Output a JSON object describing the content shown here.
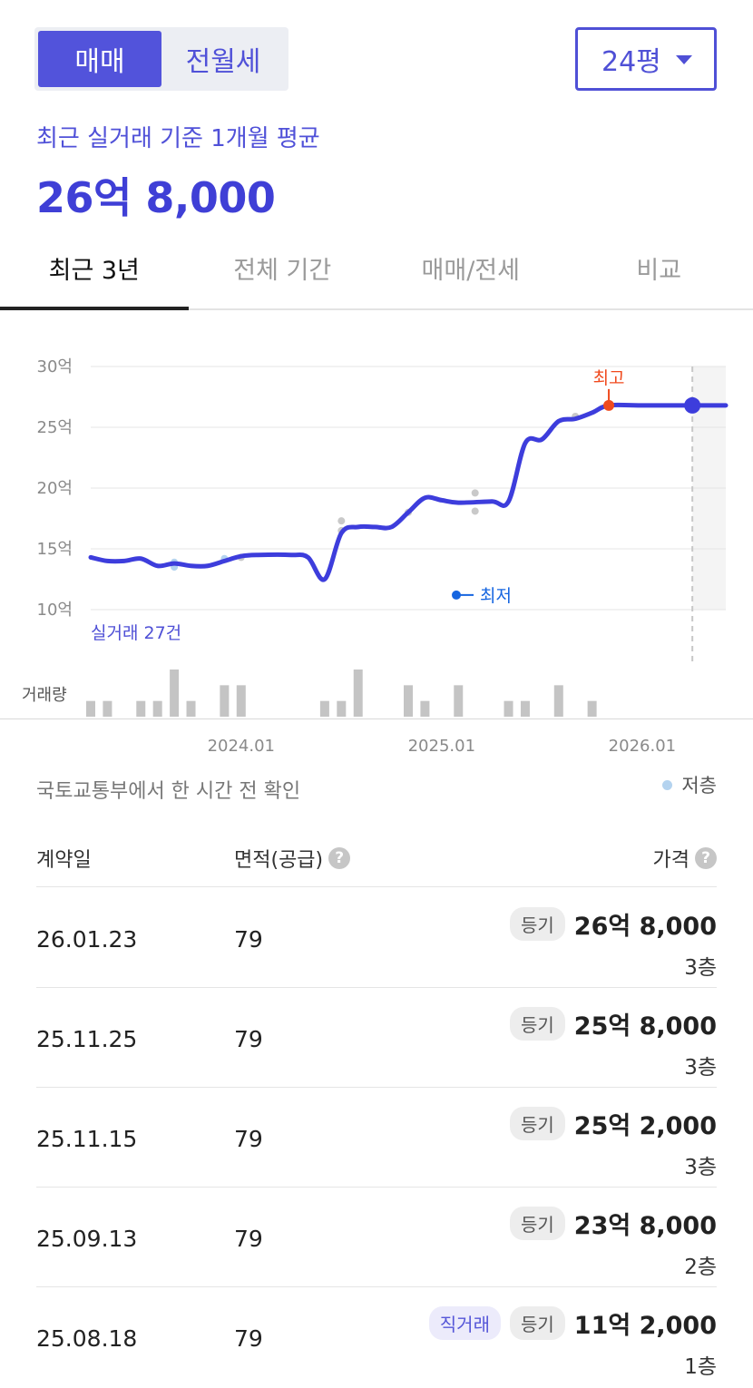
{
  "trade_toggle": {
    "options": [
      "매매",
      "전월세"
    ],
    "selected": "매매"
  },
  "size_select": {
    "value": "24평"
  },
  "summary": {
    "caption": "최근 실거래 기준 1개월 평균",
    "price": "26억 8,000"
  },
  "tabs": [
    {
      "label": "최근 3년",
      "active": true
    },
    {
      "label": "전체 기간",
      "active": false
    },
    {
      "label": "매매/전세",
      "active": false
    },
    {
      "label": "비교",
      "active": false
    }
  ],
  "chart_data": {
    "type": "line",
    "y_unit": "억",
    "y_ticks": [
      30,
      25,
      20,
      15,
      10
    ],
    "y_tick_labels": [
      "30억",
      "25억",
      "20억",
      "15억",
      "10억"
    ],
    "ylim": [
      10,
      30
    ],
    "x_ticks": [
      "2024.01",
      "2025.01",
      "2026.01"
    ],
    "series": [
      {
        "values": [
          [
            "2023-04",
            14.3
          ],
          [
            "2023-05",
            14.0
          ],
          [
            "2023-06",
            14.0
          ],
          [
            "2023-07",
            14.2
          ],
          [
            "2023-08",
            13.6
          ],
          [
            "2023-09",
            13.8
          ],
          [
            "2023-10",
            13.6
          ],
          [
            "2023-11",
            13.6
          ],
          [
            "2023-12",
            14.0
          ],
          [
            "2024-01",
            14.4
          ],
          [
            "2024-02",
            14.5
          ],
          [
            "2024-04",
            14.5
          ],
          [
            "2024-05",
            14.3
          ],
          [
            "2024-06",
            12.5
          ],
          [
            "2024-07",
            16.3
          ],
          [
            "2024-08",
            16.8
          ],
          [
            "2024-09",
            16.8
          ],
          [
            "2024-10",
            16.8
          ],
          [
            "2024-11",
            18.0
          ],
          [
            "2024-12",
            19.2
          ],
          [
            "2025-01",
            19.0
          ],
          [
            "2025-02",
            18.8
          ],
          [
            "2025-04",
            18.9
          ],
          [
            "2025-05",
            18.9
          ],
          [
            "2025-06",
            23.7
          ],
          [
            "2025-07",
            24.0
          ],
          [
            "2025-08",
            25.5
          ],
          [
            "2025-09",
            25.7
          ],
          [
            "2025-10",
            26.2
          ],
          [
            "2025-11",
            26.8
          ],
          [
            "2026-01",
            26.8
          ],
          [
            "2026-06",
            26.8
          ]
        ]
      }
    ],
    "trades": [
      [
        "2023-09",
        13.9,
        "low"
      ],
      [
        "2023-09",
        13.5,
        "low"
      ],
      [
        "2023-12",
        14.2,
        "low"
      ],
      [
        "2024-01",
        14.3,
        "normal"
      ],
      [
        "2024-07",
        17.3,
        "normal"
      ],
      [
        "2024-07",
        16.5,
        "normal"
      ],
      [
        "2024-11",
        18.0,
        "normal"
      ],
      [
        "2025-03",
        19.6,
        "normal"
      ],
      [
        "2025-03",
        18.1,
        "normal"
      ],
      [
        "2025-09",
        25.9,
        "normal"
      ]
    ],
    "annotations": {
      "high_label": "최고",
      "low_label": "최저",
      "count_label": "실거래 27건"
    },
    "volume_label": "거래량",
    "volume": [
      [
        "2023-04",
        1
      ],
      [
        "2023-05",
        1
      ],
      [
        "2023-07",
        1
      ],
      [
        "2023-08",
        1
      ],
      [
        "2023-09",
        3
      ],
      [
        "2023-10",
        1
      ],
      [
        "2023-12",
        2
      ],
      [
        "2024-01",
        2
      ],
      [
        "2024-06",
        1
      ],
      [
        "2024-07",
        1
      ],
      [
        "2024-08",
        3
      ],
      [
        "2024-11",
        2
      ],
      [
        "2024-12",
        1
      ],
      [
        "2025-02",
        2
      ],
      [
        "2025-05",
        1
      ],
      [
        "2025-06",
        1
      ],
      [
        "2025-08",
        2
      ],
      [
        "2025-10",
        1
      ]
    ],
    "grid": true,
    "future_shaded": true
  },
  "list": {
    "source_note": "국토교통부에서 한 시간 전 확인",
    "legend": "저층",
    "headers": {
      "date": "계약일",
      "area": "면적(공급)",
      "price": "가격"
    },
    "help_glyph": "?",
    "rows": [
      {
        "date": "26.01.23",
        "area": "79",
        "badges": [
          "등기"
        ],
        "price": "26억 8,000",
        "floor": "3층"
      },
      {
        "date": "25.11.25",
        "area": "79",
        "badges": [
          "등기"
        ],
        "price": "25억 8,000",
        "floor": "3층"
      },
      {
        "date": "25.11.15",
        "area": "79",
        "badges": [
          "등기"
        ],
        "price": "25억 2,000",
        "floor": "3층"
      },
      {
        "date": "25.09.13",
        "area": "79",
        "badges": [
          "등기"
        ],
        "price": "23억 8,000",
        "floor": "2층"
      },
      {
        "date": "25.08.18",
        "area": "79",
        "badges": [
          "직거래",
          "등기"
        ],
        "price": "11억 2,000",
        "floor": "1층"
      }
    ]
  },
  "colors": {
    "accent": "#4f50d6",
    "line": "#3d3ddc",
    "high_marker": "#f04a1e",
    "low_marker": "#1565e0",
    "low_floor_dot": "#b4d3ef",
    "volume_bar": "#c4c4c4"
  }
}
